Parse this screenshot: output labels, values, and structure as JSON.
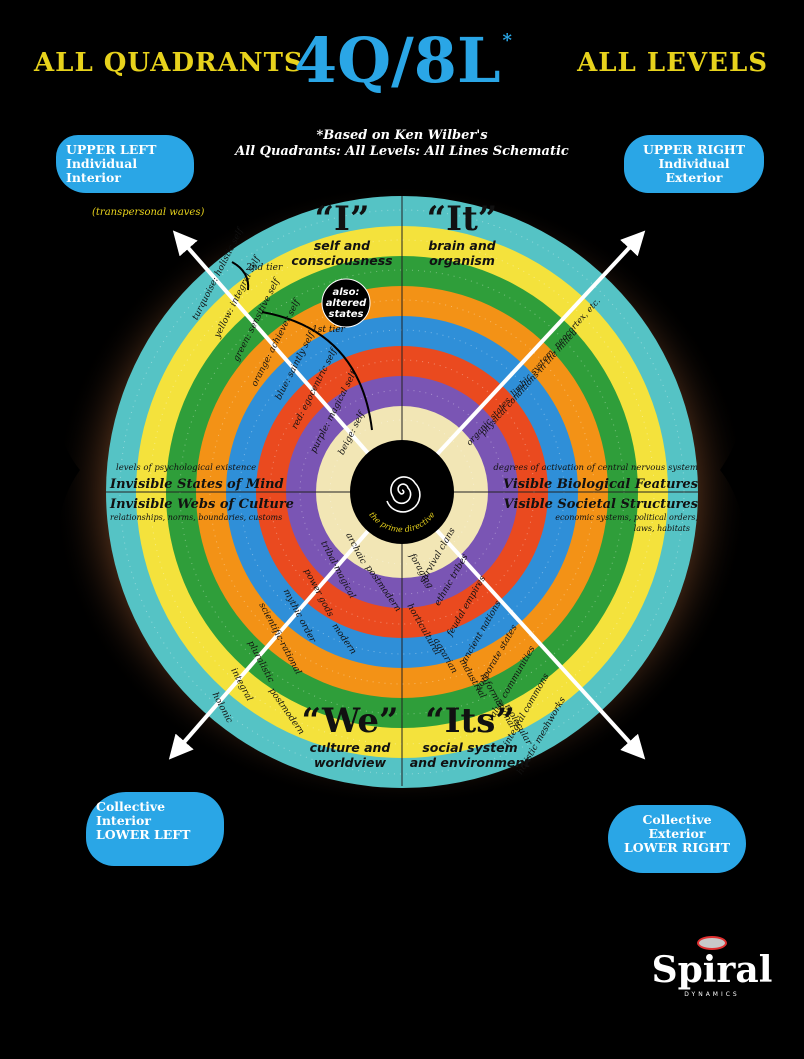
{
  "header": {
    "left": "ALL QUADRANTS",
    "center": "4Q/8L",
    "center_mark": "*",
    "right": "ALL LEVELS"
  },
  "subtitle": {
    "line1": "*Based on Ken Wilber's",
    "line2": "All Quadrants: All Levels: All Lines Schematic"
  },
  "quadrant_tags": {
    "upper_left": [
      "UPPER LEFT",
      "Individual",
      "Interior"
    ],
    "upper_right": [
      "UPPER RIGHT",
      "Individual",
      "Exterior"
    ],
    "lower_left": [
      "Collective",
      "Interior",
      "LOWER LEFT"
    ],
    "lower_right": [
      "Collective",
      "Exterior",
      "LOWER RIGHT"
    ]
  },
  "quadrants": {
    "I": {
      "title": "“I”",
      "line1": "self and",
      "line2": "consciousness"
    },
    "It": {
      "title": "“It”",
      "line1": "brain and",
      "line2": "organism"
    },
    "We": {
      "title": "“We”",
      "line1": "culture and",
      "line2": "worldview"
    },
    "Its": {
      "title": "“Its”",
      "line1": "social system",
      "line2": "and environment"
    }
  },
  "axis_labels": {
    "left_top_small": "levels of psychological existence",
    "left_top": "Invisible States of Mind",
    "left_bottom": "Invisible Webs of Culture",
    "left_bottom_small": "relationships, norms, boundaries, customs",
    "right_top_small": "degrees of activation of central nervous system",
    "right_top": "Visible Biological Features",
    "right_bottom": "Visible Societal Structures",
    "right_bottom_small1": "economic systems, political orders,",
    "right_bottom_small2": "laws, habitats"
  },
  "notes": {
    "transpersonal": "(transpersonal waves)",
    "tier2": "2nd tier",
    "tier1": "1st tier",
    "altered1": "also:",
    "altered2": "altered",
    "altered3": "states",
    "core": "the prime directive",
    "ur_text1": "organic states, limbic system, neocortex, etc.",
    "ur_text2": "physical conditions in the milieu"
  },
  "self_levels": [
    "beige: self",
    "purple: magical self",
    "red: egocentric self",
    "blue: saintly self",
    "orange: achiever self",
    "green: sensitive self",
    "yellow: integral self",
    "turquoise: holistic self"
  ],
  "culture_levels": [
    "archaic",
    "tribal-magical",
    "power gods",
    "mythic order",
    "scientific-rational",
    "pluralistic",
    "integral",
    "holonic"
  ],
  "we_levels": [
    "postmodern",
    "modern",
    "postmodern"
  ],
  "society_levels": [
    "survival clans",
    "ethnic tribes",
    "feudal empires",
    "ancient nations",
    "corporate states",
    "value communities",
    "integral commons",
    "holistic meshworks"
  ],
  "its_levels": [
    "foraging",
    "horticultural",
    "agrarian",
    "industrial",
    "informational",
    "molecular"
  ],
  "logo": {
    "word": "Spiral",
    "sub": "DYNAMICS"
  },
  "colors": {
    "beige": "#f2e6b5",
    "purple": "#7a55b4",
    "red": "#ea4a1f",
    "blue": "#2f8fd8",
    "orange": "#f39216",
    "green": "#2f9e3a",
    "yellow": "#f4e23c",
    "turquoise": "#55c3c5",
    "accent_blue": "#2aa6e6",
    "header_gold": "#e7d21c"
  }
}
